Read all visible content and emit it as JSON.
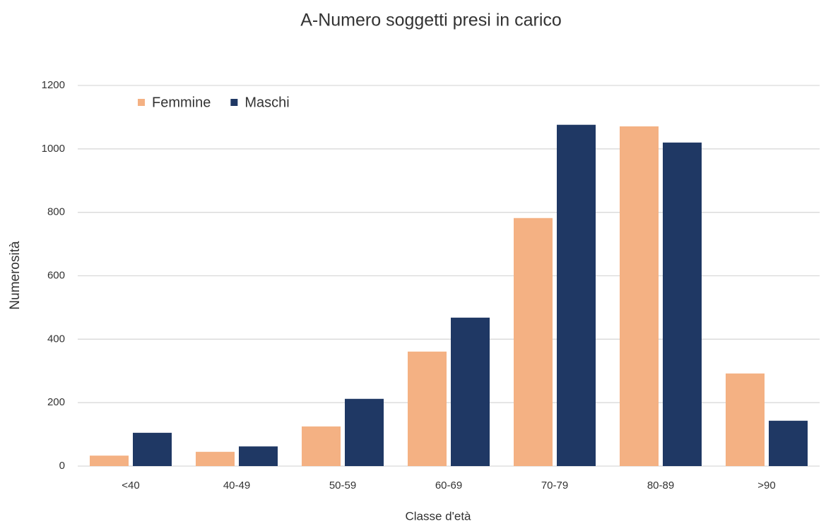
{
  "chart_data": {
    "type": "bar",
    "title": "A-Numero soggetti presi in carico",
    "x_label": "Classe d'età",
    "y_label": "Numerosità",
    "categories": [
      "<40",
      "40-49",
      "50-59",
      "60-69",
      "70-79",
      "80-89",
      ">90"
    ],
    "series": [
      {
        "name": "Femmine",
        "color": "#f4b183",
        "values": [
          33,
          45,
          125,
          361,
          782,
          1071,
          292
        ]
      },
      {
        "name": "Maschi",
        "color": "#1f3864",
        "values": [
          105,
          62,
          212,
          468,
          1076,
          1020,
          143
        ]
      }
    ],
    "ylim": [
      0,
      1200
    ],
    "yticks": [
      0,
      200,
      400,
      600,
      800,
      1000,
      1200
    ],
    "grid": true,
    "legend": "top-left"
  }
}
